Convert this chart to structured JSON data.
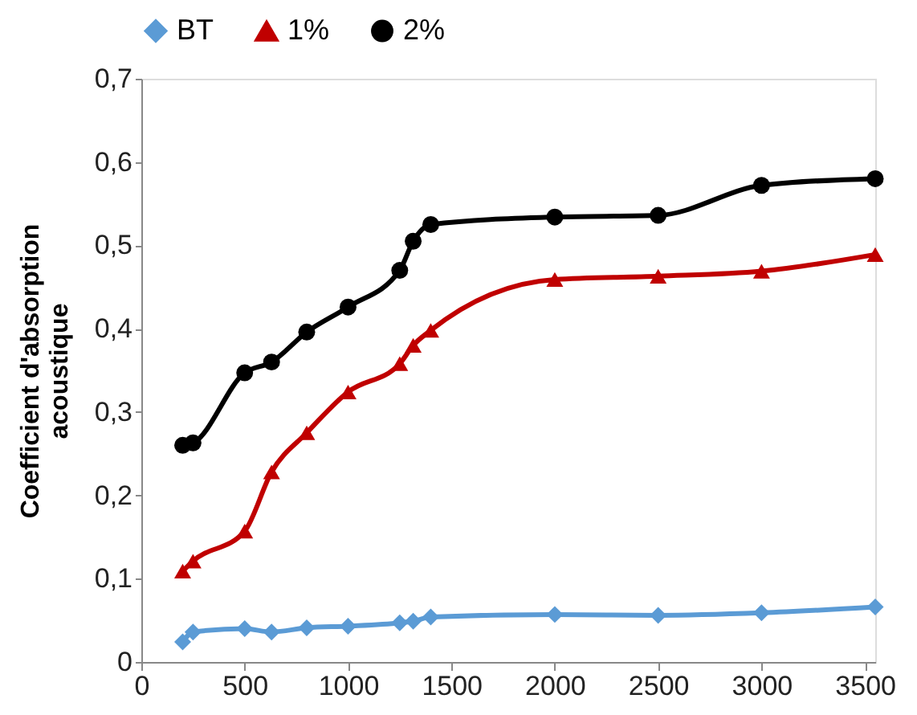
{
  "chart_data": {
    "type": "line",
    "ylabel": "Coefficient d'absorption acoustique",
    "x": [
      200,
      250,
      500,
      630,
      800,
      1000,
      1250,
      1315,
      1400,
      2000,
      2500,
      3000,
      3550
    ],
    "series": [
      {
        "name": "BT",
        "color": "#5b9bd5",
        "marker": "diamond",
        "values": [
          0.024,
          0.036,
          0.04,
          0.036,
          0.041,
          0.043,
          0.047,
          0.049,
          0.054,
          0.057,
          0.056,
          0.059,
          0.066
        ]
      },
      {
        "name": "1%",
        "color": "#c00000",
        "marker": "triangle",
        "values": [
          0.109,
          0.121,
          0.157,
          0.228,
          0.275,
          0.324,
          0.358,
          0.38,
          0.398,
          0.459,
          0.463,
          0.469,
          0.489
        ]
      },
      {
        "name": "2%",
        "color": "#000000",
        "marker": "circle",
        "values": [
          0.26,
          0.263,
          0.347,
          0.36,
          0.396,
          0.426,
          0.47,
          0.505,
          0.525,
          0.534,
          0.536,
          0.572,
          0.58
        ]
      }
    ],
    "xlim": [
      0,
      3550
    ],
    "xticks": [
      0,
      500,
      1000,
      1500,
      2000,
      2500,
      3000,
      3500
    ],
    "ylim": [
      0,
      0.7
    ],
    "yticks": [
      0,
      {
        "value": 0.1,
        "label": "0,1"
      },
      {
        "value": 0.2,
        "label": "0,2"
      },
      {
        "value": 0.3,
        "label": "0,3"
      },
      {
        "value": 0.4,
        "label": "0,4"
      },
      {
        "value": 0.5,
        "label": "0,5"
      },
      {
        "value": 0.6,
        "label": "0,6"
      },
      {
        "value": 0.7,
        "label": "0,7"
      }
    ],
    "grid": false,
    "legend": "top",
    "line_style": "solid"
  }
}
